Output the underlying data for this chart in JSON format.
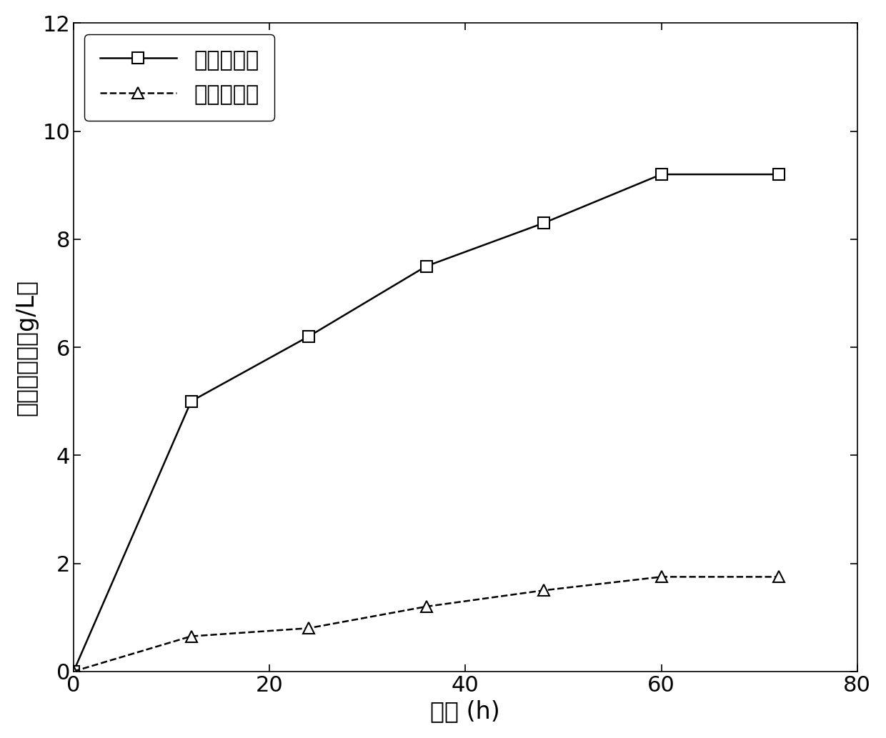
{
  "series1_label": "组合预处理",
  "series2_label": "未经预处理",
  "series1_x": [
    0,
    12,
    24,
    36,
    48,
    60,
    72
  ],
  "series1_y": [
    0,
    5.0,
    6.2,
    7.5,
    8.3,
    9.2,
    9.2
  ],
  "series2_x": [
    0,
    12,
    24,
    36,
    48,
    60,
    72
  ],
  "series2_y": [
    0,
    0.65,
    0.8,
    1.2,
    1.5,
    1.75,
    1.75
  ],
  "xlabel": "时间 (h)",
  "ylabel": "还原糖浓度（g/L）",
  "xlim": [
    0,
    80
  ],
  "ylim": [
    0,
    12
  ],
  "xticks": [
    0,
    20,
    40,
    60,
    80
  ],
  "yticks": [
    0,
    2,
    4,
    6,
    8,
    10,
    12
  ],
  "line1_color": "#000000",
  "line2_color": "#000000",
  "line1_style": "-",
  "line2_style": "--",
  "line1_marker": "s",
  "line2_marker": "^",
  "marker_size": 11,
  "line_width": 1.8,
  "marker_facecolor": "white",
  "background_color": "#ffffff",
  "font_size_labels": 24,
  "font_size_ticks": 22,
  "font_size_legend": 22
}
